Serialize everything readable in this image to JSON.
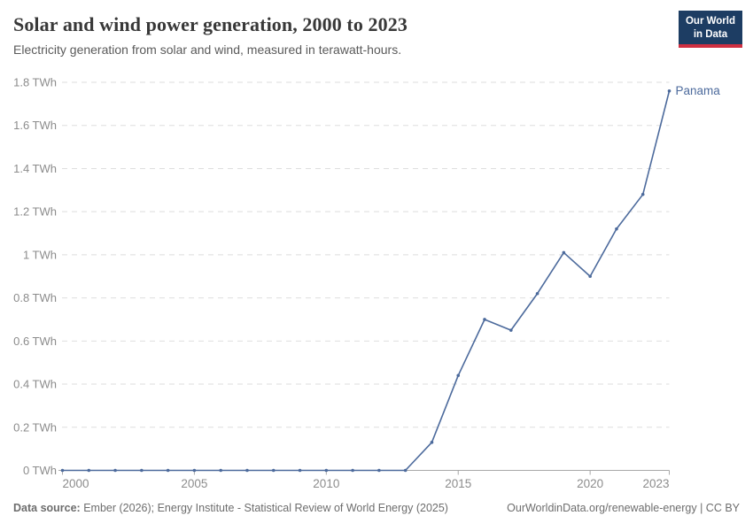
{
  "header": {
    "title": "Solar and wind power generation, 2000 to 2023",
    "subtitle": "Electricity generation from solar and wind, measured in terawatt-hours.",
    "logo": {
      "line1": "Our World",
      "line2": "in Data",
      "bg_color": "#1d3d63",
      "accent_color": "#cf2f41"
    }
  },
  "chart_data": {
    "type": "line",
    "title": "Solar and wind power generation, 2000 to 2023",
    "xlabel": "",
    "ylabel": "TWh",
    "xlim": [
      2000,
      2023
    ],
    "ylim": [
      0,
      1.8
    ],
    "grid": "horizontal dashed",
    "legend_position": "end-of-line label",
    "x": [
      2000,
      2001,
      2002,
      2003,
      2004,
      2005,
      2006,
      2007,
      2008,
      2009,
      2010,
      2011,
      2012,
      2013,
      2014,
      2015,
      2016,
      2017,
      2018,
      2019,
      2020,
      2021,
      2022,
      2023
    ],
    "series": [
      {
        "name": "Panama",
        "color": "#4c6a9c",
        "values": [
          0,
          0,
          0,
          0,
          0,
          0,
          0,
          0,
          0,
          0,
          0,
          0,
          0,
          0,
          0.13,
          0.44,
          0.7,
          0.65,
          0.82,
          1.01,
          0.9,
          1.12,
          1.28,
          1.76
        ]
      }
    ],
    "yticks": [
      {
        "value": 0,
        "label": "0 TWh"
      },
      {
        "value": 0.2,
        "label": "0.2 TWh"
      },
      {
        "value": 0.4,
        "label": "0.4 TWh"
      },
      {
        "value": 0.6,
        "label": "0.6 TWh"
      },
      {
        "value": 0.8,
        "label": "0.8 TWh"
      },
      {
        "value": 1,
        "label": "1 TWh"
      },
      {
        "value": 1.2,
        "label": "1.2 TWh"
      },
      {
        "value": 1.4,
        "label": "1.4 TWh"
      },
      {
        "value": 1.6,
        "label": "1.6 TWh"
      },
      {
        "value": 1.8,
        "label": "1.8 TWh"
      }
    ],
    "xticks": [
      {
        "value": 2000,
        "label": "2000",
        "align": "start"
      },
      {
        "value": 2005,
        "label": "2005",
        "align": "middle"
      },
      {
        "value": 2010,
        "label": "2010",
        "align": "middle"
      },
      {
        "value": 2015,
        "label": "2015",
        "align": "middle"
      },
      {
        "value": 2020,
        "label": "2020",
        "align": "middle"
      },
      {
        "value": 2023,
        "label": "2023",
        "align": "end"
      }
    ],
    "colors": {
      "gridline": "#dedede",
      "axis": "#a8a8a8",
      "tick_label": "#8c8c8c"
    }
  },
  "footer": {
    "source_label": "Data source:",
    "source_text": " Ember (2026); Energy Institute - Statistical Review of World Energy (2025)",
    "link_text": "OurWorldinData.org/renewable-energy | CC BY"
  }
}
